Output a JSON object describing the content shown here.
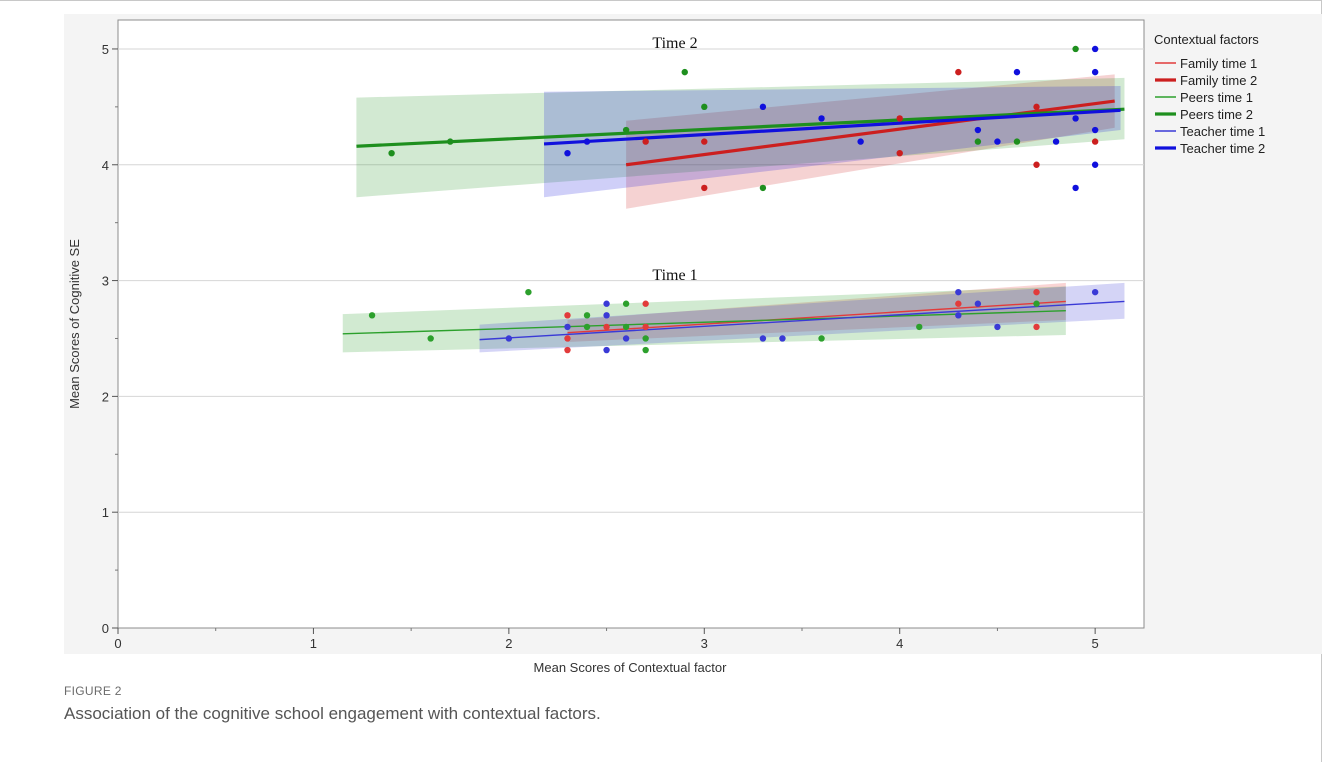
{
  "caption": {
    "label": "FIGURE 2",
    "text": "Association of the cognitive school engagement with contextual factors."
  },
  "chart_data": {
    "type": "scatter",
    "title": "",
    "xlabel": "Mean Scores of Contextual factor",
    "ylabel": "Mean Scores of Cognitive SE",
    "xlim": [
      0,
      5.25
    ],
    "ylim": [
      0,
      5.25
    ],
    "xticks": [
      0,
      1,
      2,
      3,
      4,
      5
    ],
    "yticks": [
      0,
      1,
      2,
      3,
      4,
      5
    ],
    "grid": "horizontal",
    "legend_title": "Contextual factors",
    "legend_position": "right",
    "panel_labels": [
      {
        "text": "Time 2",
        "x": 2.85,
        "y": 5.05
      },
      {
        "text": "Time 1",
        "x": 2.85,
        "y": 3.05
      }
    ],
    "series": [
      {
        "name": "Family time 1",
        "color": "#e23b3b",
        "thick": false,
        "line": {
          "x0": 2.3,
          "y0": 2.55,
          "x1": 4.85,
          "y1": 2.82
        },
        "band": [
          [
            2.3,
            2.47,
            2.66
          ],
          [
            4.85,
            2.66,
            2.98
          ]
        ],
        "points": [
          [
            2.3,
            2.7
          ],
          [
            2.3,
            2.4
          ],
          [
            2.3,
            2.5
          ],
          [
            2.5,
            2.6
          ],
          [
            2.7,
            2.8
          ],
          [
            2.7,
            2.6
          ],
          [
            4.3,
            2.8
          ],
          [
            4.7,
            2.6
          ],
          [
            4.7,
            2.9
          ]
        ]
      },
      {
        "name": "Family time 2",
        "color": "#cc1f1f",
        "thick": true,
        "line": {
          "x0": 2.6,
          "y0": 4.0,
          "x1": 5.1,
          "y1": 4.55
        },
        "band": [
          [
            2.6,
            3.62,
            4.38
          ],
          [
            5.1,
            4.32,
            4.78
          ]
        ],
        "points": [
          [
            2.7,
            4.2
          ],
          [
            3.0,
            3.8
          ],
          [
            3.0,
            4.2
          ],
          [
            4.0,
            4.1
          ],
          [
            4.0,
            4.4
          ],
          [
            4.3,
            4.8
          ],
          [
            4.7,
            4.0
          ],
          [
            4.7,
            4.5
          ],
          [
            5.0,
            4.2
          ]
        ]
      },
      {
        "name": "Peers time 1",
        "color": "#2ca02c",
        "thick": false,
        "line": {
          "x0": 1.15,
          "y0": 2.54,
          "x1": 4.85,
          "y1": 2.74
        },
        "band": [
          [
            1.15,
            2.38,
            2.71
          ],
          [
            4.85,
            2.53,
            2.95
          ]
        ],
        "points": [
          [
            1.3,
            2.7
          ],
          [
            1.6,
            2.5
          ],
          [
            2.1,
            2.9
          ],
          [
            2.4,
            2.7
          ],
          [
            2.4,
            2.6
          ],
          [
            2.6,
            2.8
          ],
          [
            2.6,
            2.6
          ],
          [
            2.7,
            2.4
          ],
          [
            2.7,
            2.5
          ],
          [
            3.6,
            2.5
          ],
          [
            4.1,
            2.6
          ],
          [
            4.7,
            2.8
          ]
        ]
      },
      {
        "name": "Peers time 2",
        "color": "#1e8f1e",
        "thick": true,
        "line": {
          "x0": 1.22,
          "y0": 4.16,
          "x1": 5.15,
          "y1": 4.48
        },
        "band": [
          [
            1.22,
            3.72,
            4.58
          ],
          [
            5.15,
            4.22,
            4.75
          ]
        ],
        "points": [
          [
            1.4,
            4.1
          ],
          [
            1.7,
            4.2
          ],
          [
            2.6,
            4.3
          ],
          [
            2.9,
            4.8
          ],
          [
            3.0,
            4.5
          ],
          [
            3.3,
            3.8
          ],
          [
            4.4,
            4.2
          ],
          [
            4.6,
            4.2
          ],
          [
            4.9,
            5.0
          ]
        ]
      },
      {
        "name": "Teacher time 1",
        "color": "#3a3ad6",
        "thick": false,
        "line": {
          "x0": 1.85,
          "y0": 2.49,
          "x1": 5.15,
          "y1": 2.82
        },
        "band": [
          [
            1.85,
            2.38,
            2.62
          ],
          [
            5.15,
            2.67,
            2.98
          ]
        ],
        "points": [
          [
            2.0,
            2.5
          ],
          [
            2.3,
            2.6
          ],
          [
            2.5,
            2.8
          ],
          [
            2.5,
            2.7
          ],
          [
            2.5,
            2.4
          ],
          [
            2.6,
            2.5
          ],
          [
            3.3,
            2.5
          ],
          [
            3.4,
            2.5
          ],
          [
            4.3,
            2.9
          ],
          [
            4.3,
            2.7
          ],
          [
            4.4,
            2.8
          ],
          [
            4.5,
            2.6
          ],
          [
            5.0,
            2.9
          ]
        ]
      },
      {
        "name": "Teacher time 2",
        "color": "#1010dd",
        "thick": true,
        "line": {
          "x0": 2.18,
          "y0": 4.18,
          "x1": 5.13,
          "y1": 4.47
        },
        "band": [
          [
            2.18,
            3.72,
            4.63
          ],
          [
            5.13,
            4.3,
            4.68
          ]
        ],
        "points": [
          [
            2.3,
            4.1
          ],
          [
            2.4,
            4.2
          ],
          [
            3.3,
            4.5
          ],
          [
            3.6,
            4.4
          ],
          [
            3.8,
            4.2
          ],
          [
            4.4,
            4.3
          ],
          [
            4.5,
            4.2
          ],
          [
            4.6,
            4.8
          ],
          [
            4.8,
            4.2
          ],
          [
            4.9,
            4.4
          ],
          [
            4.9,
            3.8
          ],
          [
            5.0,
            5.0
          ],
          [
            5.0,
            4.8
          ],
          [
            5.0,
            4.3
          ],
          [
            5.0,
            4.0
          ]
        ]
      }
    ]
  }
}
